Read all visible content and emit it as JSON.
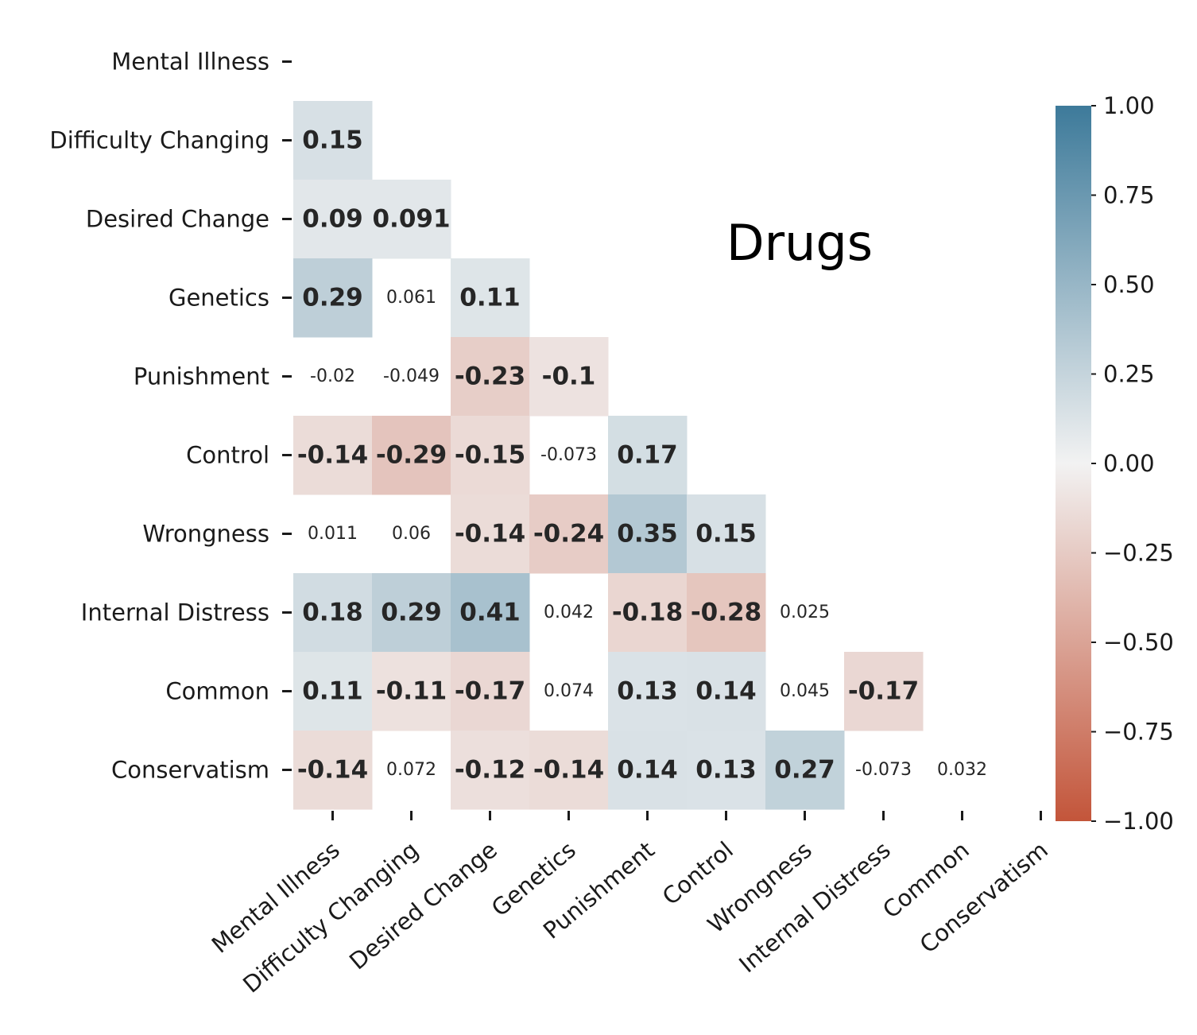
{
  "chart_data": {
    "type": "heatmap",
    "title": "Drugs",
    "variables": [
      "Mental Illness",
      "Difficulty Changing",
      "Desired Change",
      "Genetics",
      "Punishment",
      "Control",
      "Wrongness",
      "Internal Distress",
      "Common",
      "Conservatism"
    ],
    "matrix_lower": [
      [],
      [
        "0.15"
      ],
      [
        "0.09",
        "0.091"
      ],
      [
        "0.29",
        "0.061",
        "0.11"
      ],
      [
        "-0.02",
        "-0.049",
        "-0.23",
        "-0.1"
      ],
      [
        "-0.14",
        "-0.29",
        "-0.15",
        "-0.073",
        "0.17"
      ],
      [
        "0.011",
        "0.06",
        "-0.14",
        "-0.24",
        "0.35",
        "0.15"
      ],
      [
        "0.18",
        "0.29",
        "0.41",
        "0.042",
        "-0.18",
        "-0.28",
        "0.025"
      ],
      [
        "0.11",
        "-0.11",
        "-0.17",
        "0.074",
        "0.13",
        "0.14",
        "0.045",
        "-0.17"
      ],
      [
        "-0.14",
        "0.072",
        "-0.12",
        "-0.14",
        "0.14",
        "0.13",
        "0.27",
        "-0.073",
        "0.032"
      ]
    ],
    "highlight_threshold": 0.08,
    "colorbar": {
      "range": [
        -1.0,
        1.0
      ],
      "ticks": [
        "1.00",
        "0.75",
        "0.50",
        "0.25",
        "0.00",
        "−0.25",
        "−0.50",
        "−0.75",
        "−1.00"
      ],
      "colors": {
        "negative": "#c3553a",
        "neutral": "#f2f2f2",
        "positive": "#3d7a9a"
      }
    }
  }
}
